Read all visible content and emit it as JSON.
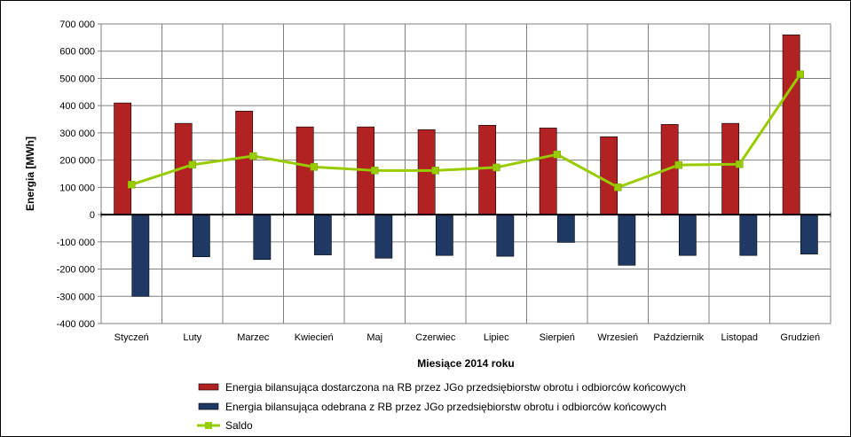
{
  "chart_data": {
    "type": "bar",
    "title": "",
    "xlabel": "Miesiące 2014 roku",
    "ylabel": "Energia  [MWh]",
    "ylim": [
      -400000,
      700000
    ],
    "ytick_step": 100000,
    "yticks": [
      "-400 000",
      "-300 000",
      "-200 000",
      "-100 000",
      "0",
      "100 000",
      "200 000",
      "300 000",
      "400 000",
      "500 000",
      "600 000",
      "700 000"
    ],
    "grid": true,
    "legend_position": "bottom",
    "categories": [
      "Styczeń",
      "Luty",
      "Marzec",
      "Kwiecień",
      "Maj",
      "Czerwiec",
      "Lipiec",
      "Sierpień",
      "Wrzesień",
      "Październik",
      "Listopad",
      "Grudzień"
    ],
    "series": [
      {
        "name": "Energia bilansująca dostarczona na RB przez JGo przedsiębiorstw obrotu i odbiorców końcowych",
        "type": "bar",
        "color": "#b22222",
        "values": [
          410000,
          335000,
          380000,
          322000,
          322000,
          312000,
          328000,
          318000,
          286000,
          331000,
          335000,
          660000
        ]
      },
      {
        "name": "Energia bilansująca odebrana z RB przez JGo przedsiębiorstw obrotu i odbiorców końcowych",
        "type": "bar",
        "color": "#1f3864",
        "values": [
          -300000,
          -155000,
          -165000,
          -148000,
          -160000,
          -150000,
          -153000,
          -102000,
          -186000,
          -150000,
          -150000,
          -145000
        ]
      },
      {
        "name": "Saldo",
        "type": "line",
        "color": "#99cc00",
        "values": [
          110000,
          183000,
          215000,
          175000,
          162000,
          162000,
          173000,
          221000,
          100000,
          182000,
          185000,
          515000
        ]
      }
    ]
  }
}
